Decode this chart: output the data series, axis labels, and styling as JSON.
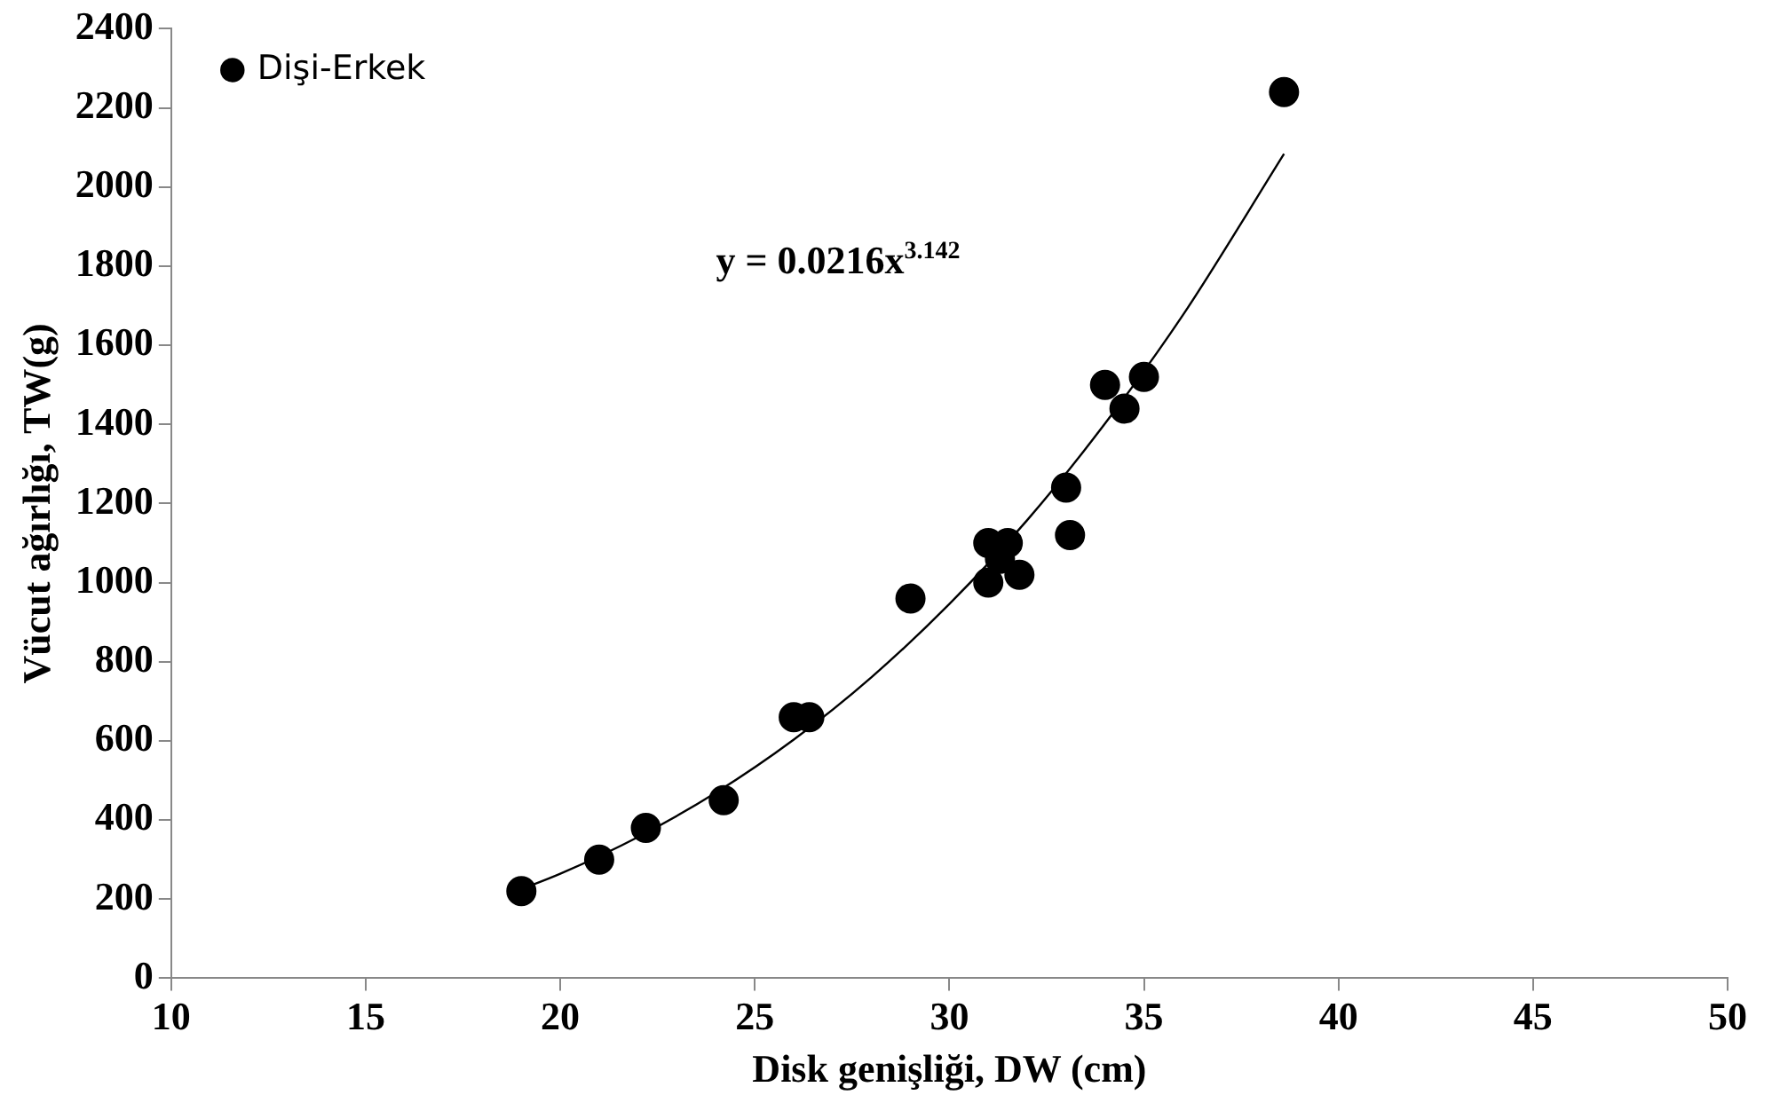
{
  "chart_data": {
    "type": "scatter",
    "xlabel": "Disk genişliği, DW (cm)",
    "ylabel": "Vücut ağırlığı, TW(g)",
    "xlim": [
      10,
      50
    ],
    "xticks": [
      10,
      15,
      20,
      25,
      30,
      35,
      40,
      45,
      50
    ],
    "ylim": [
      0,
      2400
    ],
    "yticks": [
      0,
      200,
      400,
      600,
      800,
      1000,
      1200,
      1400,
      1600,
      1800,
      2000,
      2200,
      2400
    ],
    "grid": false,
    "legend": "top left",
    "annotations": [
      "y = 0.0216x$^{3.142}$"
    ],
    "series": [
      {
        "name": "Dişi-Erkek",
        "color": "#000000",
        "marker": "circle",
        "x": [
          19,
          21,
          22.2,
          24.2,
          26,
          26.4,
          29,
          31,
          31,
          31.5,
          31.8,
          31.3,
          33,
          33.1,
          34,
          34.5,
          35,
          38.6
        ],
        "values": [
          220,
          300,
          380,
          450,
          660,
          660,
          960,
          1000,
          1100,
          1100,
          1020,
          1060,
          1240,
          1120,
          1500,
          1440,
          1520,
          2240
        ]
      },
      {
        "type": "line",
        "color": "#000000",
        "marker": "none",
        "x": [
          19,
          20,
          22,
          24,
          26,
          28,
          30,
          32,
          34,
          36,
          38.6
        ],
        "values": [
          225,
          264,
          357,
          469,
          603,
          761,
          946,
          1158,
          1402,
          1676,
          2084
        ]
      }
    ]
  }
}
